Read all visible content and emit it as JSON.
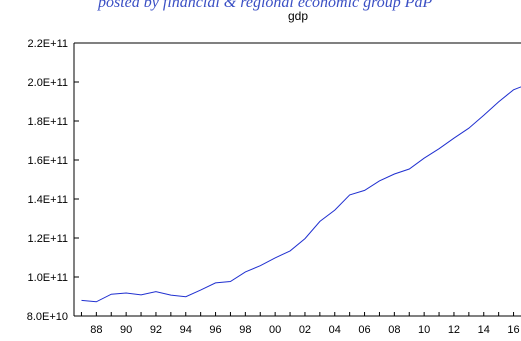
{
  "caption": "posted by financial & regional economic group PdP",
  "colors": {
    "line": "#2030d0",
    "frame": "#000000",
    "background": "#ffffff",
    "caption": "#3a4fc4"
  },
  "chart_data": {
    "type": "line",
    "title": "gdp",
    "xlabel": "",
    "ylabel": "",
    "grid": false,
    "legend": "none",
    "x_tick_labels": [
      "88",
      "90",
      "92",
      "94",
      "96",
      "98",
      "00",
      "02",
      "04",
      "06",
      "08",
      "10",
      "12",
      "14",
      "16"
    ],
    "x_tick_years": [
      1988,
      1990,
      1992,
      1994,
      1996,
      1998,
      2000,
      2002,
      2004,
      2006,
      2008,
      2010,
      2012,
      2014,
      2016
    ],
    "xlim": [
      1986.5,
      2016.5
    ],
    "y_tick_labels": [
      "8.0E+10",
      "1.0E+11",
      "1.2E+11",
      "1.4E+11",
      "1.6E+11",
      "1.8E+11",
      "2.0E+11",
      "2.2E+11"
    ],
    "y_ticks": [
      80000000000,
      100000000000,
      120000000000,
      140000000000,
      160000000000,
      180000000000,
      200000000000,
      220000000000
    ],
    "ylim": [
      80000000000,
      220000000000
    ],
    "series": [
      {
        "x": [
          1987,
          1988,
          1989,
          1990,
          1991,
          1992,
          1993,
          1994,
          1995,
          1996,
          1997,
          1998,
          1999,
          2000,
          2001,
          2002,
          2003,
          2004,
          2005,
          2006,
          2007,
          2008,
          2009,
          2010,
          2011,
          2012,
          2013,
          2014,
          2015,
          2016
        ],
        "values": [
          88000000000,
          87300000000,
          91200000000,
          91800000000,
          90800000000,
          92500000000,
          90700000000,
          89900000000,
          93300000000,
          97000000000,
          97700000000,
          102600000000,
          105800000000,
          109800000000,
          113400000000,
          119700000000,
          128500000000,
          134300000000,
          142100000000,
          144400000000,
          149300000000,
          152800000000,
          155400000000,
          160900000000,
          165800000000,
          171200000000,
          176300000000,
          182900000000,
          189800000000,
          196000000000
        ]
      }
    ],
    "last_point": {
      "x": 2016.9,
      "value": 198700000000
    }
  }
}
